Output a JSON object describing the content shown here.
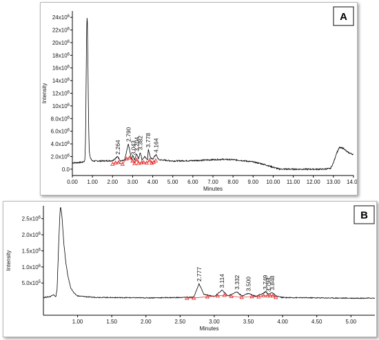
{
  "chart_data": [
    {
      "panel": "A",
      "type": "line",
      "ylabel": "Intensity",
      "xlabel": "Minutes",
      "xlim": [
        0,
        14
      ],
      "ylim": [
        -1000000,
        25000000
      ],
      "x_ticks": [
        "0.00",
        "1.00",
        "2.00",
        "3.00",
        "4.00",
        "5.00",
        "6.00",
        "7.00",
        "8.00",
        "9.00",
        "10.00",
        "11.00",
        "12.00",
        "13.00",
        "14.00"
      ],
      "y_ticks": [
        {
          "value": 0,
          "mantissa": "0.0",
          "exp": ""
        },
        {
          "value": 2000000,
          "mantissa": "2.0x10",
          "exp": "6"
        },
        {
          "value": 4000000,
          "mantissa": "4.0x10",
          "exp": "6"
        },
        {
          "value": 6000000,
          "mantissa": "6.0x10",
          "exp": "6"
        },
        {
          "value": 8000000,
          "mantissa": "8.0x10",
          "exp": "6"
        },
        {
          "value": 10000000,
          "mantissa": "10x10",
          "exp": "6"
        },
        {
          "value": 12000000,
          "mantissa": "12x10",
          "exp": "6"
        },
        {
          "value": 14000000,
          "mantissa": "14x10",
          "exp": "6"
        },
        {
          "value": 16000000,
          "mantissa": "16x10",
          "exp": "6"
        },
        {
          "value": 18000000,
          "mantissa": "18x10",
          "exp": "6"
        },
        {
          "value": 20000000,
          "mantissa": "20x10",
          "exp": "6"
        },
        {
          "value": 22000000,
          "mantissa": "22x10",
          "exp": "6"
        },
        {
          "value": 24000000,
          "mantissa": "24x10",
          "exp": "6"
        }
      ],
      "trace_color": "#000000",
      "marker_color": "#e02020",
      "trace": [
        [
          0.0,
          1000000
        ],
        [
          0.3,
          1050000
        ],
        [
          0.5,
          1100000
        ],
        [
          0.62,
          1300000
        ],
        [
          0.66,
          5000000
        ],
        [
          0.69,
          15000000
        ],
        [
          0.71,
          22000000
        ],
        [
          0.73,
          24000000
        ],
        [
          0.75,
          23000000
        ],
        [
          0.78,
          15000000
        ],
        [
          0.81,
          7000000
        ],
        [
          0.84,
          3000000
        ],
        [
          0.9,
          1700000
        ],
        [
          1.0,
          1300000
        ],
        [
          1.5,
          1300000
        ],
        [
          2.0,
          1350000
        ],
        [
          2.26,
          2000000
        ],
        [
          2.4,
          1300000
        ],
        [
          2.6,
          1400000
        ],
        [
          2.79,
          4000000
        ],
        [
          2.95,
          1400000
        ],
        [
          3.0,
          2200000
        ],
        [
          3.1,
          1500000
        ],
        [
          3.2,
          2500000
        ],
        [
          3.3,
          1600000
        ],
        [
          3.38,
          2700000
        ],
        [
          3.47,
          1500000
        ],
        [
          3.6,
          2000000
        ],
        [
          3.75,
          1500000
        ],
        [
          3.78,
          3200000
        ],
        [
          3.9,
          1700000
        ],
        [
          4.0,
          1600000
        ],
        [
          4.16,
          2300000
        ],
        [
          4.3,
          1500000
        ],
        [
          5.0,
          1300000
        ],
        [
          6.0,
          1350000
        ],
        [
          7.0,
          1500000
        ],
        [
          7.5,
          1550000
        ],
        [
          8.0,
          1500000
        ],
        [
          8.5,
          1350000
        ],
        [
          9.0,
          1150000
        ],
        [
          9.5,
          800000
        ],
        [
          10.0,
          300000
        ],
        [
          10.3,
          20000
        ],
        [
          11.0,
          0
        ],
        [
          11.5,
          0
        ],
        [
          12.0,
          0
        ],
        [
          12.5,
          0
        ],
        [
          12.85,
          100000
        ],
        [
          13.0,
          1000000
        ],
        [
          13.15,
          2500000
        ],
        [
          13.3,
          3400000
        ],
        [
          13.5,
          3300000
        ],
        [
          13.7,
          2700000
        ],
        [
          14.0,
          2300000
        ]
      ],
      "peaks": [
        {
          "x": 2.264,
          "label": "2.264"
        },
        {
          "x": 2.79,
          "label": "2.790"
        },
        {
          "x": 3.043,
          "label": "3.043"
        },
        {
          "x": 3.204,
          "label": "3.204"
        },
        {
          "x": 3.382,
          "label": "3.382"
        },
        {
          "x": 3.778,
          "label": "3.778"
        },
        {
          "x": 4.164,
          "label": "4.164"
        }
      ],
      "marker_x": [
        2.0,
        2.15,
        2.3,
        2.5,
        2.7,
        2.85,
        3.0,
        3.1,
        3.2,
        3.3,
        3.45,
        3.55,
        3.7,
        3.85,
        3.95,
        4.05,
        4.15
      ]
    },
    {
      "panel": "B",
      "type": "line",
      "ylabel": "Intensity",
      "xlabel": "Minutes",
      "xlim": [
        0.5,
        5.35
      ],
      "ylim": [
        -500000,
        2900000
      ],
      "x_ticks": [
        "1.00",
        "1.50",
        "2.00",
        "2.50",
        "3.00",
        "3.50",
        "4.00",
        "4.50",
        "5.00"
      ],
      "y_ticks": [
        {
          "value": 500000,
          "mantissa": "5.0x10",
          "exp": "5"
        },
        {
          "value": 1000000,
          "mantissa": "1.0x10",
          "exp": "6"
        },
        {
          "value": 1500000,
          "mantissa": "1.5x10",
          "exp": "6"
        },
        {
          "value": 2000000,
          "mantissa": "2.0x10",
          "exp": "6"
        },
        {
          "value": 2500000,
          "mantissa": "2.5x10",
          "exp": "6"
        }
      ],
      "trace_color": "#000000",
      "marker_color": "#e02020",
      "trace": [
        [
          0.5,
          50000
        ],
        [
          0.6,
          80000
        ],
        [
          0.65,
          150000
        ],
        [
          0.68,
          60000
        ],
        [
          0.7,
          300000
        ],
        [
          0.72,
          1500000
        ],
        [
          0.74,
          2600000
        ],
        [
          0.75,
          2900000
        ],
        [
          0.77,
          2600000
        ],
        [
          0.8,
          1700000
        ],
        [
          0.83,
          1100000
        ],
        [
          0.86,
          700000
        ],
        [
          0.9,
          350000
        ],
        [
          0.95,
          180000
        ],
        [
          1.0,
          100000
        ],
        [
          1.2,
          60000
        ],
        [
          1.5,
          50000
        ],
        [
          2.0,
          40000
        ],
        [
          2.5,
          50000
        ],
        [
          2.7,
          60000
        ],
        [
          2.777,
          480000
        ],
        [
          2.85,
          150000
        ],
        [
          3.0,
          80000
        ],
        [
          3.114,
          280000
        ],
        [
          3.2,
          100000
        ],
        [
          3.332,
          230000
        ],
        [
          3.4,
          100000
        ],
        [
          3.5,
          180000
        ],
        [
          3.6,
          90000
        ],
        [
          3.7,
          160000
        ],
        [
          3.749,
          230000
        ],
        [
          3.8,
          150000
        ],
        [
          3.848,
          210000
        ],
        [
          3.9,
          100000
        ],
        [
          4.0,
          50000
        ],
        [
          4.5,
          40000
        ],
        [
          5.0,
          30000
        ],
        [
          5.35,
          30000
        ]
      ],
      "peaks": [
        {
          "x": 2.777,
          "label": "2.777"
        },
        {
          "x": 3.114,
          "label": "3.114"
        },
        {
          "x": 3.332,
          "label": "3.332"
        },
        {
          "x": 3.5,
          "label": "3.500"
        },
        {
          "x": 3.749,
          "label": "3.749"
        },
        {
          "x": 3.794,
          "label": "3.794"
        },
        {
          "x": 3.848,
          "label": "3.848"
        }
      ],
      "marker_x": [
        2.6,
        2.7,
        2.9,
        3.05,
        3.15,
        3.25,
        3.4,
        3.55,
        3.65,
        3.72,
        3.78,
        3.82,
        3.86,
        3.9
      ]
    }
  ],
  "panel_a": {
    "badge": "A"
  },
  "panel_b": {
    "badge": "B"
  }
}
